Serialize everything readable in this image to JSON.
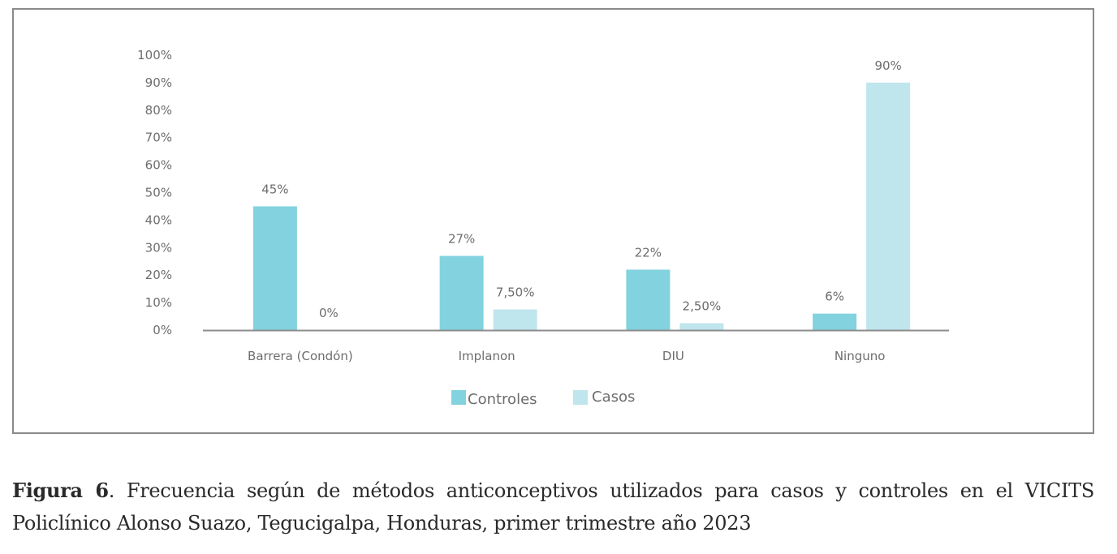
{
  "chart_data": {
    "type": "bar",
    "title": "",
    "xlabel": "",
    "ylabel": "",
    "ylim": [
      0,
      100
    ],
    "yticks": [
      "0%",
      "10%",
      "20%",
      "30%",
      "40%",
      "50%",
      "60%",
      "70%",
      "80%",
      "90%",
      "100%"
    ],
    "grid": false,
    "legend_position": "bottom-center",
    "categories": [
      "Barrera (Condón)",
      "Implanon",
      "DIU",
      "Ninguno"
    ],
    "series": [
      {
        "name": "Controles",
        "color": "#82d2df",
        "values": [
          45,
          27,
          22,
          6
        ],
        "labels": [
          "45%",
          "27%",
          "22%",
          "6%"
        ]
      },
      {
        "name": "Casos",
        "color": "#bfe5ed",
        "values": [
          0,
          7.5,
          2.5,
          90
        ],
        "labels": [
          "0%",
          "7,50%",
          "2,50%",
          "90%"
        ]
      }
    ]
  },
  "caption": {
    "figure_label": "Figura 6",
    "line1": ". Frecuencia según de métodos anticonceptivos utilizados para casos y controles en el VICITS",
    "line2": "Policlínico Alonso Suazo, Tegucigalpa, Honduras, primer trimestre año 2023"
  },
  "colors": {
    "frame": "#8a8a8a",
    "axis": "#8c8c8c",
    "text": "#6d6d6d"
  }
}
